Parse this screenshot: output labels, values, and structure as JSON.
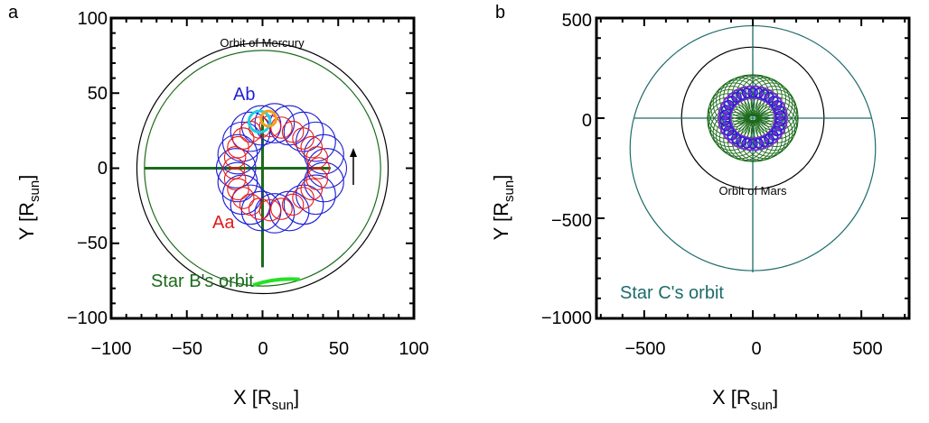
{
  "panels": [
    {
      "label": "a",
      "xlabel_main": "X [R",
      "xlabel_sub": "sun",
      "xlabel_end": "]",
      "ylabel_main": "Y [R",
      "ylabel_sub": "sun",
      "ylabel_end": "]",
      "xticks": [
        "−100",
        "−50",
        "0",
        "50",
        "100"
      ],
      "yticks": [
        "100",
        "50",
        "0",
        "−50",
        "−100"
      ],
      "annotations": {
        "mercury": "Orbit of Mercury",
        "ab": "Ab",
        "aa": "Aa",
        "starB": "Star B's orbit",
        "arrow": "↑"
      }
    },
    {
      "label": "b",
      "xlabel_main": "X [R",
      "xlabel_sub": "sun",
      "xlabel_end": "]",
      "ylabel_main": "Y [R",
      "ylabel_sub": "sun",
      "ylabel_end": "]",
      "xticks": [
        "−500",
        "0",
        "500"
      ],
      "yticks": [
        "500",
        "0",
        "−500",
        "−1000"
      ],
      "annotations": {
        "mars": "Orbit of Mars",
        "starC": "Star C's orbit"
      }
    }
  ],
  "colors": {
    "black": "#000000",
    "darkgreen": "#1b6b1b",
    "blue": "#1f1fd6",
    "red": "#e31a1c",
    "cyan": "#19d3e6",
    "orange": "#f2a019",
    "lightgreen": "#26e026",
    "purple": "#7a2fc9",
    "teal": "#1e6b6b"
  },
  "chart_data": [
    {
      "type": "scatter",
      "panel": "a",
      "xlim": [
        -100,
        100
      ],
      "ylim": [
        -100,
        100
      ],
      "series": [
        {
          "name": "Orbit of Mercury",
          "shape": "circle",
          "center": [
            0,
            0
          ],
          "radius": 83
        },
        {
          "name": "Star B's orbit",
          "shape": "circle",
          "center": [
            0,
            0
          ],
          "radius": 78
        },
        {
          "name": "Aa",
          "shape": "epicycles",
          "center_orbit_radius": 28,
          "loop_radius": 7,
          "count": 24,
          "offset": [
            5,
            0
          ]
        },
        {
          "name": "Ab",
          "shape": "epicycles",
          "center_orbit_radius": 30,
          "loop_radius": 13,
          "count": 20,
          "offset": [
            8,
            0
          ]
        }
      ]
    },
    {
      "type": "scatter",
      "panel": "b",
      "xlim": [
        -720,
        720
      ],
      "ylim": [
        -1000,
        500
      ],
      "series": [
        {
          "name": "Orbit of Mars",
          "shape": "circle",
          "center": [
            0,
            0
          ],
          "radius": 328
        },
        {
          "name": "Star C's orbit",
          "shape": "circle",
          "center": [
            0,
            0
          ],
          "radius": 800
        }
      ]
    }
  ]
}
